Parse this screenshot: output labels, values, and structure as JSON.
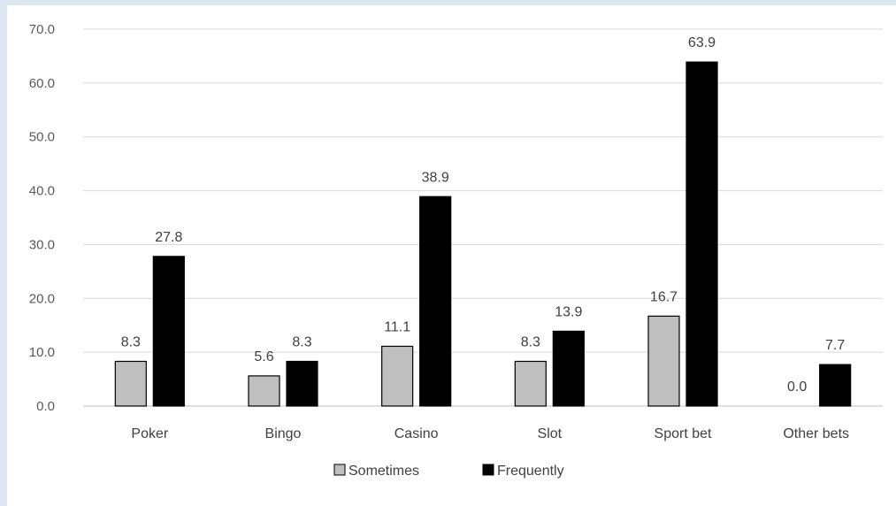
{
  "chart_data": {
    "type": "bar",
    "categories": [
      "Poker",
      "Bingo",
      "Casino",
      "Slot",
      "Sport bet",
      "Other bets"
    ],
    "series": [
      {
        "name": "Sometimes",
        "values": [
          8.3,
          5.6,
          11.1,
          8.3,
          16.7,
          0.0
        ],
        "color": "#bfbfbf"
      },
      {
        "name": "Frequently",
        "values": [
          27.8,
          8.3,
          38.9,
          13.9,
          63.9,
          7.7
        ],
        "color": "#000000"
      }
    ],
    "title": "",
    "xlabel": "",
    "ylabel": "",
    "ylim": [
      0,
      70
    ],
    "yticks": [
      "0.0",
      "10.0",
      "20.0",
      "30.0",
      "40.0",
      "50.0",
      "60.0",
      "70.0"
    ],
    "grid": true,
    "legend": "bottom"
  }
}
